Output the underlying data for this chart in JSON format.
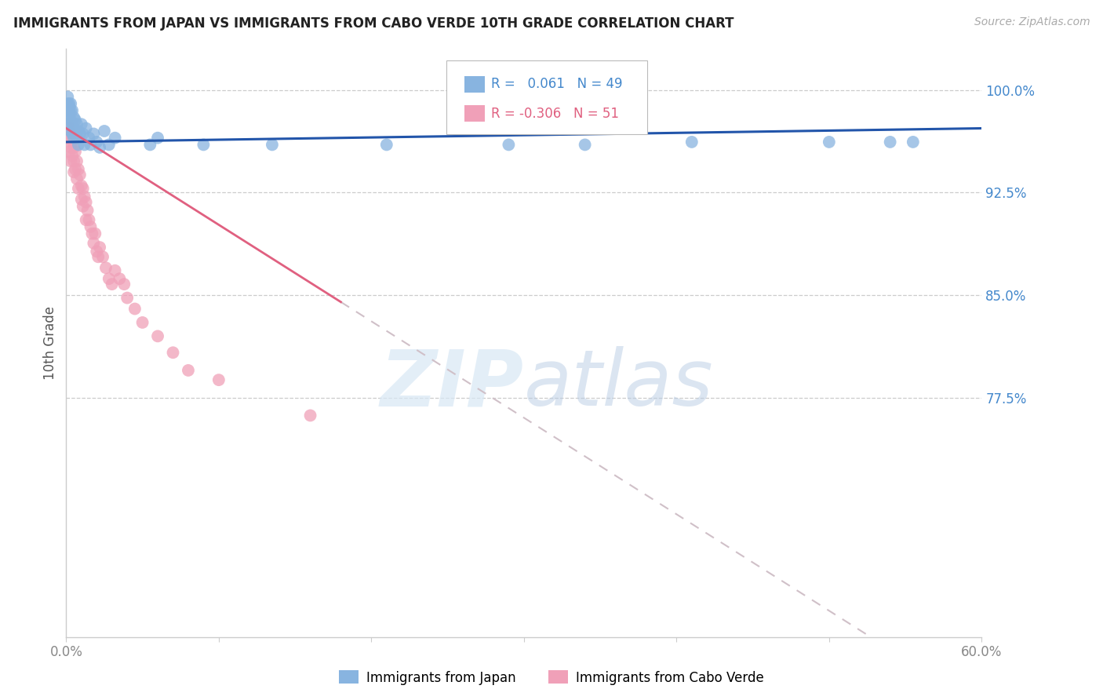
{
  "title": "IMMIGRANTS FROM JAPAN VS IMMIGRANTS FROM CABO VERDE 10TH GRADE CORRELATION CHART",
  "source": "Source: ZipAtlas.com",
  "ylabel": "10th Grade",
  "y_tick_labels": [
    "77.5%",
    "85.0%",
    "92.5%",
    "100.0%"
  ],
  "y_tick_values": [
    0.775,
    0.85,
    0.925,
    1.0
  ],
  "x_ticks": [
    0.0,
    0.1,
    0.2,
    0.3,
    0.4,
    0.5,
    0.6
  ],
  "x_tick_labels": [
    "0.0%",
    "",
    "",
    "",
    "",
    "",
    "60.0%"
  ],
  "x_min": 0.0,
  "x_max": 0.6,
  "y_min": 0.6,
  "y_max": 1.03,
  "R_japan": 0.061,
  "N_japan": 49,
  "R_cabo": -0.306,
  "N_cabo": 51,
  "japan_color": "#88b4e0",
  "cabo_color": "#f0a0b8",
  "japan_trend_color": "#2255aa",
  "cabo_trend_color": "#e06080",
  "cabo_dash_color": "#d0c0c8",
  "japan_legend_text_color": "#4488cc",
  "cabo_legend_text_color": "#e06080",
  "ytick_color": "#4488cc",
  "xtick_color": "#888888",
  "grid_color": "#cccccc",
  "spine_color": "#cccccc",
  "watermark_zip": "ZIP",
  "watermark_atlas": "atlas",
  "japan_scatter_x": [
    0.001,
    0.001,
    0.001,
    0.001,
    0.002,
    0.002,
    0.002,
    0.002,
    0.002,
    0.003,
    0.003,
    0.003,
    0.003,
    0.004,
    0.004,
    0.004,
    0.005,
    0.005,
    0.005,
    0.006,
    0.006,
    0.007,
    0.007,
    0.008,
    0.008,
    0.009,
    0.01,
    0.011,
    0.012,
    0.013,
    0.015,
    0.016,
    0.018,
    0.02,
    0.022,
    0.025,
    0.028,
    0.032,
    0.055,
    0.06,
    0.09,
    0.135,
    0.21,
    0.29,
    0.34,
    0.41,
    0.5,
    0.54,
    0.555
  ],
  "japan_scatter_y": [
    0.99,
    0.985,
    0.98,
    0.995,
    0.99,
    0.985,
    0.98,
    0.988,
    0.975,
    0.99,
    0.985,
    0.978,
    0.97,
    0.985,
    0.975,
    0.968,
    0.98,
    0.972,
    0.965,
    0.978,
    0.97,
    0.975,
    0.965,
    0.97,
    0.96,
    0.968,
    0.975,
    0.968,
    0.96,
    0.972,
    0.965,
    0.96,
    0.968,
    0.962,
    0.958,
    0.97,
    0.96,
    0.965,
    0.96,
    0.965,
    0.96,
    0.96,
    0.96,
    0.96,
    0.96,
    0.962,
    0.962,
    0.962,
    0.962
  ],
  "cabo_scatter_x": [
    0.001,
    0.001,
    0.002,
    0.002,
    0.002,
    0.003,
    0.003,
    0.003,
    0.004,
    0.004,
    0.005,
    0.005,
    0.005,
    0.006,
    0.006,
    0.007,
    0.007,
    0.008,
    0.008,
    0.009,
    0.01,
    0.01,
    0.011,
    0.011,
    0.012,
    0.013,
    0.013,
    0.014,
    0.015,
    0.016,
    0.017,
    0.018,
    0.019,
    0.02,
    0.021,
    0.022,
    0.024,
    0.026,
    0.028,
    0.03,
    0.032,
    0.035,
    0.038,
    0.04,
    0.045,
    0.05,
    0.06,
    0.07,
    0.08,
    0.1,
    0.16
  ],
  "cabo_scatter_y": [
    0.975,
    0.968,
    0.972,
    0.965,
    0.955,
    0.968,
    0.958,
    0.948,
    0.962,
    0.952,
    0.958,
    0.948,
    0.94,
    0.955,
    0.942,
    0.948,
    0.935,
    0.942,
    0.928,
    0.938,
    0.93,
    0.92,
    0.928,
    0.915,
    0.922,
    0.918,
    0.905,
    0.912,
    0.905,
    0.9,
    0.895,
    0.888,
    0.895,
    0.882,
    0.878,
    0.885,
    0.878,
    0.87,
    0.862,
    0.858,
    0.868,
    0.862,
    0.858,
    0.848,
    0.84,
    0.83,
    0.82,
    0.808,
    0.795,
    0.788,
    0.762
  ]
}
